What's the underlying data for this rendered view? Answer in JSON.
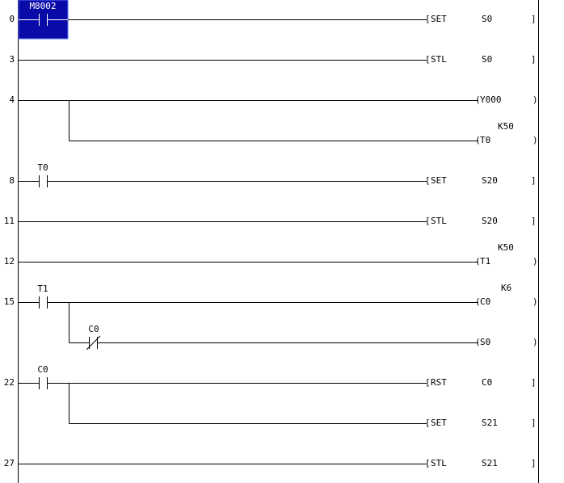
{
  "editor": {
    "rungs": [
      {
        "step": "0",
        "contacts": [
          {
            "name": "M8002",
            "type": "NO",
            "selected": true
          }
        ],
        "outputs": [
          {
            "kind": "func",
            "op": "SET",
            "arg": "S0"
          }
        ]
      },
      {
        "step": "3",
        "contacts": [],
        "outputs": [
          {
            "kind": "func",
            "op": "STL",
            "arg": "S0"
          }
        ]
      },
      {
        "step": "4",
        "contacts": [],
        "outputs": [
          {
            "kind": "coil",
            "name": "Y000"
          },
          {
            "kind": "coil",
            "name": "T0",
            "k": "K50",
            "branch": true
          }
        ]
      },
      {
        "step": "8",
        "contacts": [
          {
            "name": "T0",
            "type": "NO"
          }
        ],
        "outputs": [
          {
            "kind": "func",
            "op": "SET",
            "arg": "S20"
          }
        ]
      },
      {
        "step": "11",
        "contacts": [],
        "outputs": [
          {
            "kind": "func",
            "op": "STL",
            "arg": "S20"
          }
        ]
      },
      {
        "step": "12",
        "contacts": [],
        "outputs": [
          {
            "kind": "coil",
            "name": "T1",
            "k": "K50"
          }
        ]
      },
      {
        "step": "15",
        "contacts": [
          {
            "name": "T1",
            "type": "NO"
          },
          {
            "name": "C0",
            "type": "NC",
            "branch": true
          }
        ],
        "outputs": [
          {
            "kind": "coil",
            "name": "C0",
            "k": "K6"
          },
          {
            "kind": "coil",
            "name": "S0",
            "branch": true
          }
        ]
      },
      {
        "step": "22",
        "contacts": [
          {
            "name": "C0",
            "type": "NO"
          }
        ],
        "outputs": [
          {
            "kind": "func",
            "op": "RST",
            "arg": "C0"
          },
          {
            "kind": "func",
            "op": "SET",
            "arg": "S21",
            "branch": true
          }
        ]
      },
      {
        "step": "27",
        "contacts": [],
        "outputs": [
          {
            "kind": "func",
            "op": "STL",
            "arg": "S21"
          }
        ]
      }
    ]
  },
  "colors": {
    "cursor_fill": "#0a0aa8",
    "cursor_border": "#5a6cff",
    "cursor_text": "#ffffff",
    "line": "#000000",
    "background": "#ffffff"
  }
}
